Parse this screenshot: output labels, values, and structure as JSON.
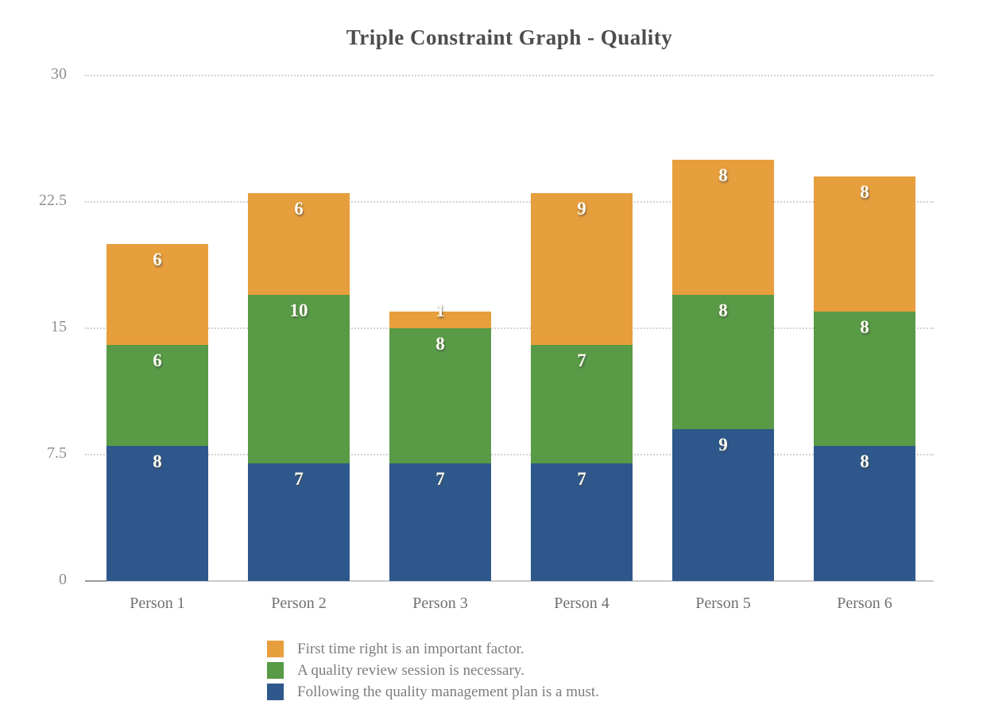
{
  "title": "Triple Constraint Graph - Quality",
  "colors": {
    "orange": "#E79E3C",
    "green": "#589A46",
    "blue": "#2E588C",
    "gridline": "#d2d2d2",
    "axis_line": "#cbcbcb",
    "title_text": "#4d4d4d",
    "axis_text": "#8e8e8e",
    "category_text": "#707070",
    "legend_text": "#7d7d7d",
    "value_label_text": "#fdfdf2"
  },
  "chart_data": {
    "type": "bar",
    "stacked": true,
    "title": "Triple Constraint Graph - Quality",
    "categories": [
      "Person 1",
      "Person 2",
      "Person 3",
      "Person 4",
      "Person 5",
      "Person 6"
    ],
    "series": [
      {
        "name": "Following the quality management plan is a must.",
        "color": "#2E588C",
        "values": [
          8,
          7,
          7,
          7,
          9,
          8
        ]
      },
      {
        "name": "A quality review session is necessary.",
        "color": "#589A46",
        "values": [
          6,
          10,
          8,
          7,
          8,
          8
        ]
      },
      {
        "name": "First time right is an important factor.",
        "color": "#E79E3C",
        "values": [
          6,
          6,
          1,
          9,
          8,
          8
        ]
      }
    ],
    "totals": [
      20,
      23,
      16,
      23,
      25,
      24
    ],
    "xlabel": "",
    "ylabel": "",
    "ylim": [
      0,
      30
    ],
    "yticks": [
      0,
      7.5,
      15,
      22.5,
      30
    ],
    "grid": "horizontal-dotted",
    "value_labels": "inside-top-white",
    "legend_position": "bottom-left",
    "legend_order_top_to_bottom": [
      "First time right is an important factor.",
      "A quality review session is necessary.",
      "Following the quality management plan is a must."
    ]
  }
}
